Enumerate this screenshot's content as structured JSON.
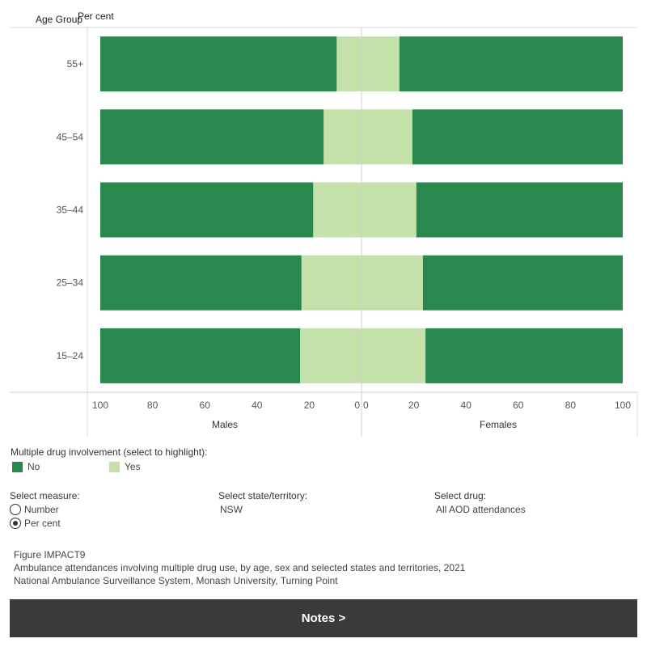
{
  "chart_data": {
    "type": "bar",
    "orientation": "horizontal-diverging",
    "row_header": "Age Group",
    "value_header": "Per cent",
    "categories": [
      "55+",
      "45–54",
      "35–44",
      "25–34",
      "15–24"
    ],
    "panels": [
      {
        "name": "Males",
        "ticks": [
          100,
          80,
          60,
          40,
          20,
          0
        ],
        "xlim": [
          0,
          100
        ],
        "series": [
          {
            "name": "Yes",
            "values": [
              9.5,
              14.5,
              18.5,
              23,
              23.5
            ]
          },
          {
            "name": "No",
            "values": [
              90.5,
              85.5,
              81.5,
              77,
              76.5
            ]
          }
        ]
      },
      {
        "name": "Females",
        "ticks": [
          0,
          20,
          40,
          60,
          80,
          100
        ],
        "xlim": [
          0,
          100
        ],
        "series": [
          {
            "name": "Yes",
            "values": [
              14.5,
              19.5,
              21,
              23.5,
              24.5
            ]
          },
          {
            "name": "No",
            "values": [
              85.5,
              80.5,
              79,
              76.5,
              75.5
            ]
          }
        ]
      }
    ],
    "colors": {
      "No": "#28884e",
      "Yes": "#c3e1a8"
    }
  },
  "legend": {
    "title": "Multiple drug involvement (select to highlight):",
    "items": [
      {
        "label": "No",
        "color": "#28884e"
      },
      {
        "label": "Yes",
        "color": "#c3e1a8"
      }
    ]
  },
  "controls": {
    "measure": {
      "label": "Select measure:",
      "options": [
        "Number",
        "Per cent"
      ],
      "selected": "Per cent"
    },
    "state": {
      "label": "Select state/territory:",
      "value": "NSW"
    },
    "drug": {
      "label": "Select drug:",
      "value": "All AOD attendances"
    }
  },
  "caption": {
    "figure": "Figure IMPACT9",
    "title": "Ambulance attendances involving multiple drug use, by age, sex and selected states and territories, 2021",
    "source": "National Ambulance Surveillance System, Monash University, Turning Point"
  },
  "notes_button": "Notes >"
}
